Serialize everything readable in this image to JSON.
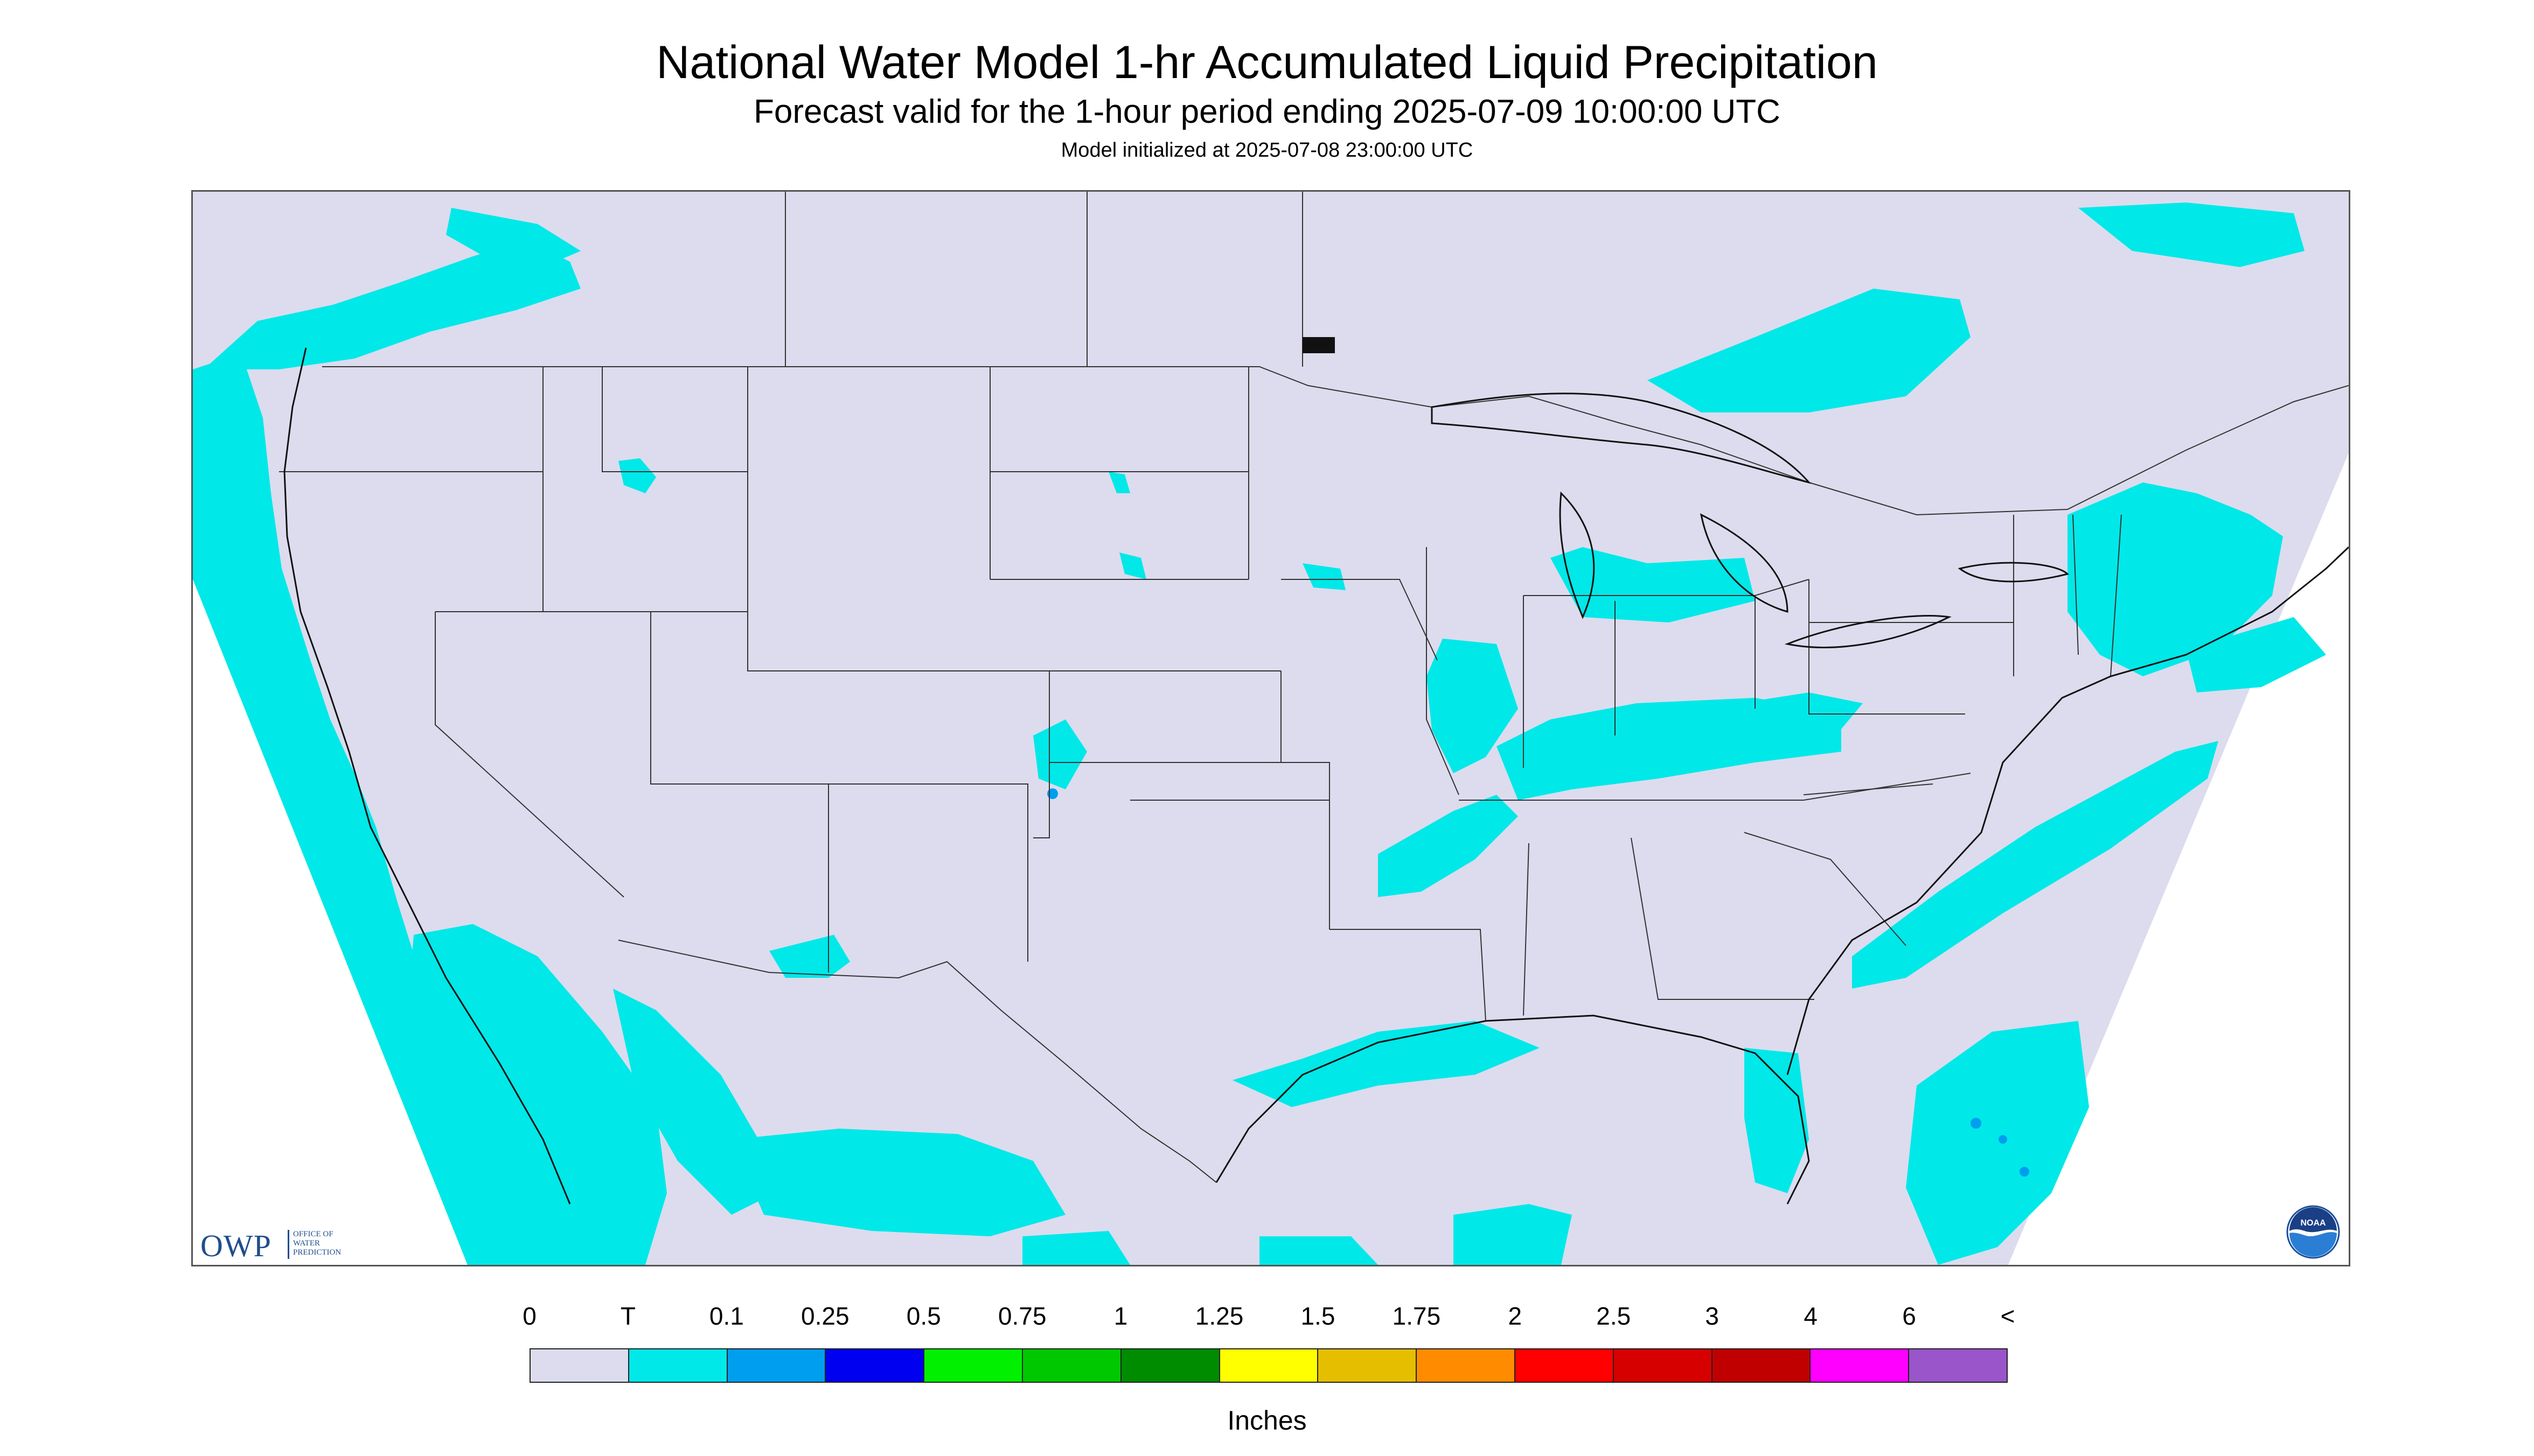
{
  "header": {
    "title": "National Water Model 1-hr Accumulated Liquid Precipitation",
    "subtitle": "Forecast valid for the 1-hour period ending 2025-07-09 10:00:00 UTC",
    "model_init": "Model initialized at 2025-07-08 23:00:00 UTC"
  },
  "map": {
    "background_color": "#dcdcee",
    "outside_color": "#ffffff",
    "boundary_color": "#333333",
    "coast_color": "#111111"
  },
  "logos": {
    "owp": {
      "abbr": "OWP",
      "line1": "OFFICE OF",
      "line2": "WATER",
      "line3": "PREDICTION"
    },
    "noaa": {
      "text": "NOAA",
      "icon": "noaa-logo-icon"
    }
  },
  "legend": {
    "labels": [
      "0",
      "T",
      "0.1",
      "0.25",
      "0.5",
      "0.75",
      "1",
      "1.25",
      "1.5",
      "1.75",
      "2",
      "2.5",
      "3",
      "4",
      "6",
      "<"
    ],
    "colors": [
      "#dcdcee",
      "#00e8e8",
      "#009eee",
      "#0000f0",
      "#00f000",
      "#00c800",
      "#008c00",
      "#ffff00",
      "#e6be00",
      "#ff8c00",
      "#ff0000",
      "#d60000",
      "#c00000",
      "#ff00ff",
      "#9955c9"
    ],
    "units": "Inches"
  }
}
